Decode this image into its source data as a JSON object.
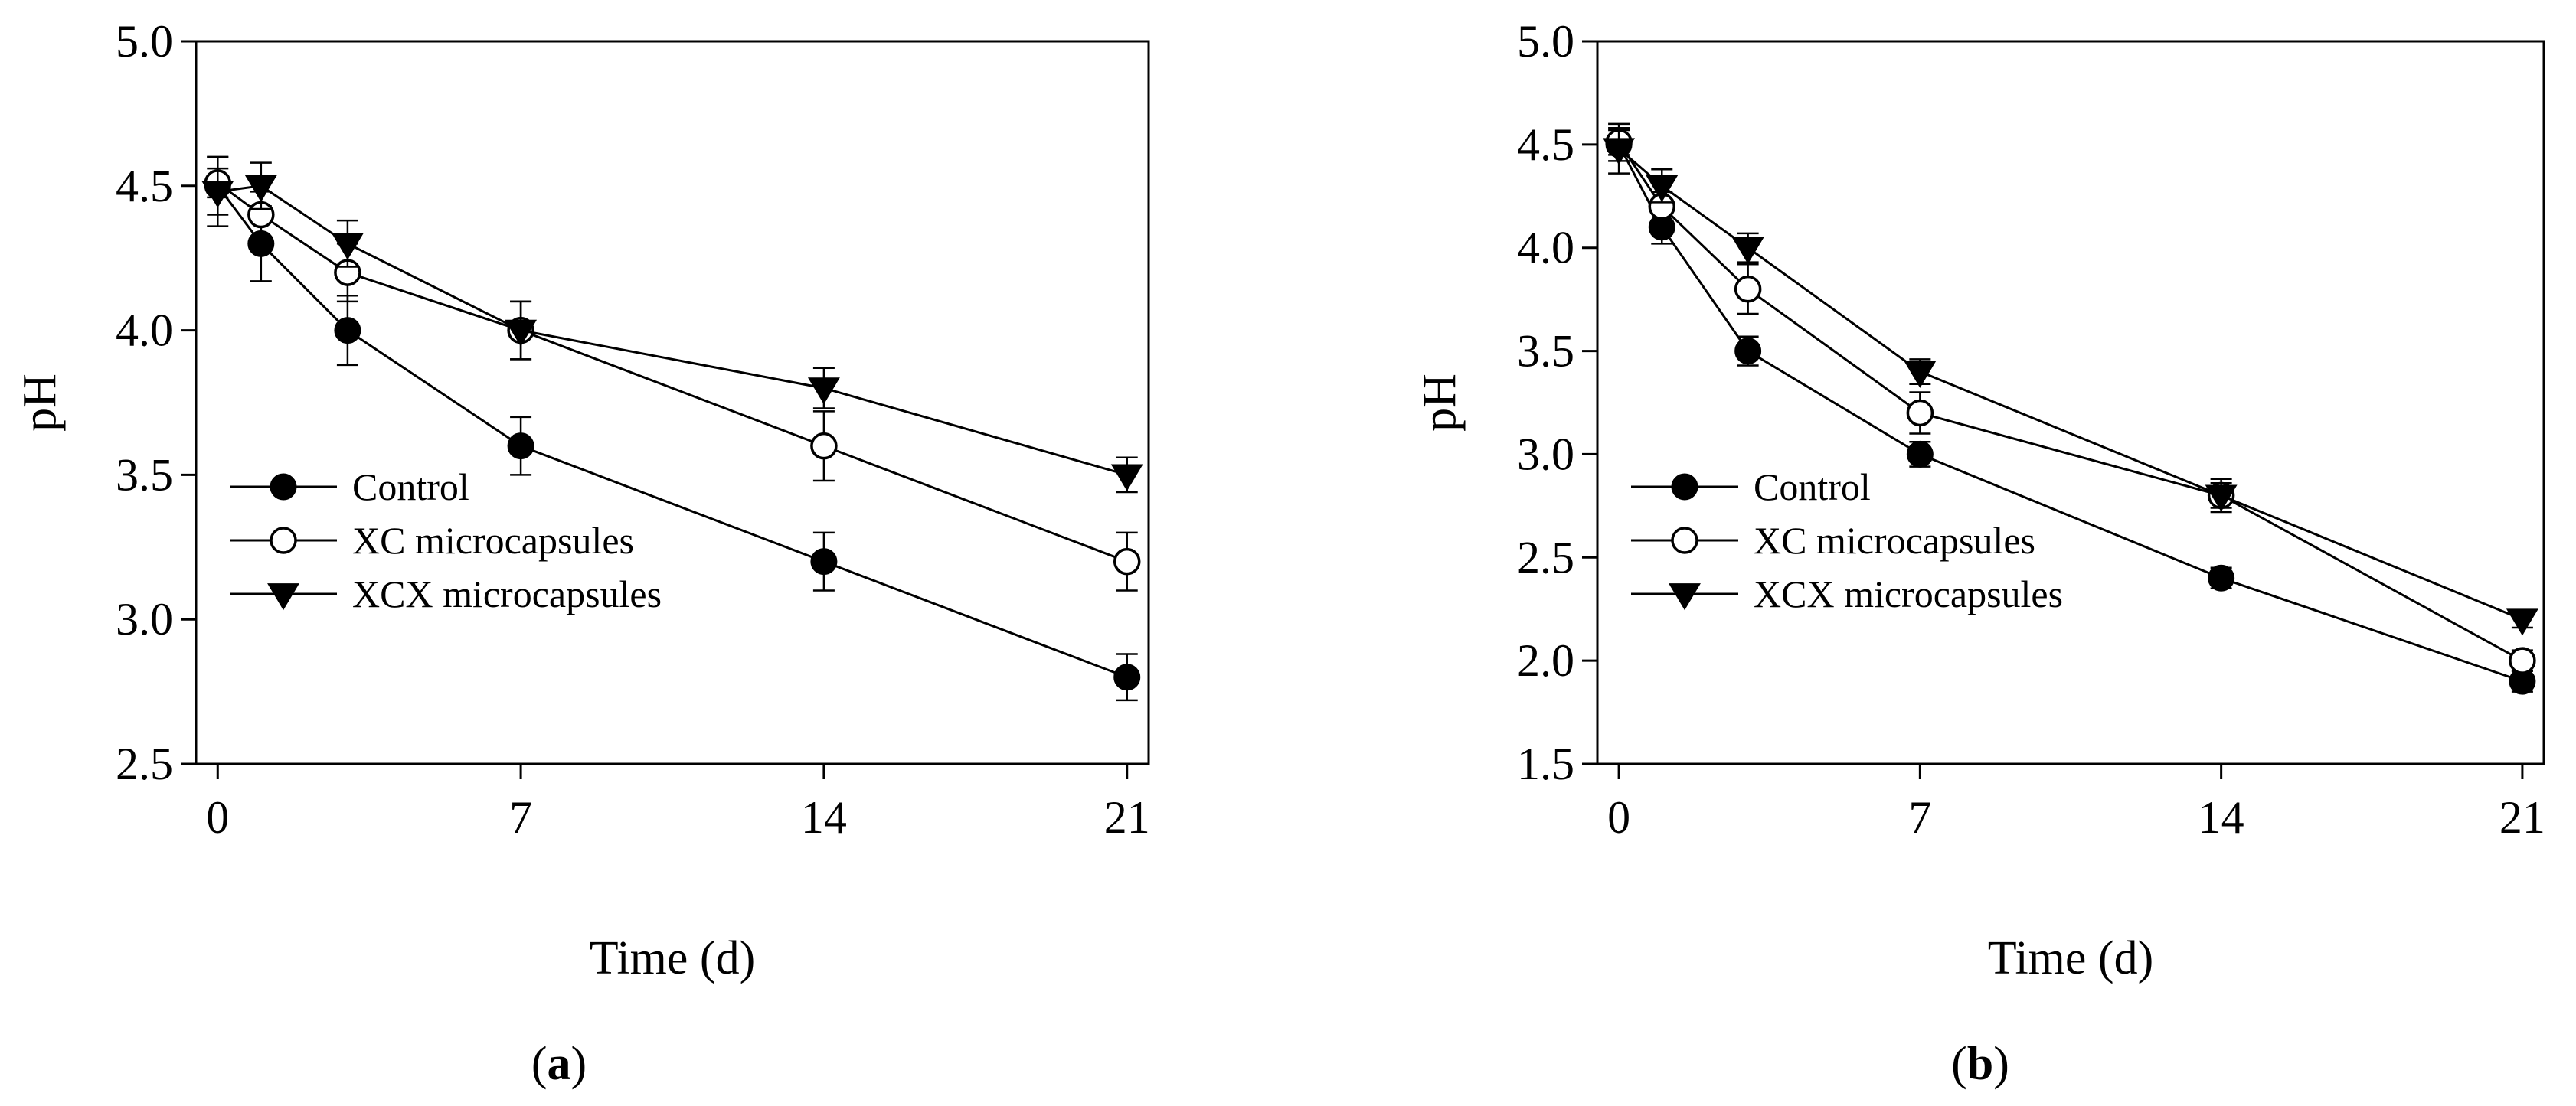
{
  "chart_data": [
    {
      "type": "line",
      "panel_label_open": "(",
      "panel_label_letter": "a",
      "panel_label_close": ")",
      "xlabel": "Time (d)",
      "ylabel": "pH",
      "xlim": [
        -0.5,
        21.5
      ],
      "ylim": [
        2.5,
        5.0
      ],
      "xticks": [
        0,
        7,
        14,
        21
      ],
      "yticks": [
        2.5,
        3.0,
        3.5,
        4.0,
        4.5,
        5.0
      ],
      "ytick_labels": [
        "2.5",
        "3.0",
        "3.5",
        "4.0",
        "4.5",
        "5.0"
      ],
      "legend_position": "lower-left",
      "series": [
        {
          "name": "Control",
          "marker": "filled-circle",
          "x": [
            0,
            1,
            3,
            7,
            14,
            21
          ],
          "y": [
            4.5,
            4.3,
            4.0,
            3.6,
            3.2,
            2.8
          ],
          "err": [
            0.1,
            0.13,
            0.12,
            0.1,
            0.1,
            0.08
          ]
        },
        {
          "name": "XC microcapsules",
          "marker": "open-circle",
          "x": [
            0,
            1,
            3,
            7,
            14,
            21
          ],
          "y": [
            4.51,
            4.4,
            4.2,
            4.0,
            3.6,
            3.2
          ],
          "err": [
            0.05,
            0.08,
            0.1,
            0.1,
            0.12,
            0.1
          ]
        },
        {
          "name": "XCX microcapsules",
          "marker": "filled-triangle-down",
          "x": [
            0,
            1,
            3,
            7,
            14,
            21
          ],
          "y": [
            4.48,
            4.5,
            4.3,
            4.0,
            3.8,
            3.5
          ],
          "err": [
            0.12,
            0.08,
            0.08,
            0.1,
            0.07,
            0.06
          ]
        }
      ]
    },
    {
      "type": "line",
      "panel_label_open": "(",
      "panel_label_letter": "b",
      "panel_label_close": ")",
      "xlabel": "Time (d)",
      "ylabel": "pH",
      "xlim": [
        -0.5,
        21.5
      ],
      "ylim": [
        1.5,
        5.0
      ],
      "xticks": [
        0,
        7,
        14,
        21
      ],
      "yticks": [
        1.5,
        2.0,
        2.5,
        3.0,
        3.5,
        4.0,
        4.5,
        5.0
      ],
      "ytick_labels": [
        "1.5",
        "2.0",
        "2.5",
        "3.0",
        "3.5",
        "4.0",
        "4.5",
        "5.0"
      ],
      "legend_position": "lower-left",
      "series": [
        {
          "name": "Control",
          "marker": "filled-circle",
          "x": [
            0,
            1,
            3,
            7,
            14,
            21
          ],
          "y": [
            4.5,
            4.1,
            3.5,
            3.0,
            2.4,
            1.9
          ],
          "err": [
            0.08,
            0.08,
            0.07,
            0.06,
            0.05,
            0.05
          ]
        },
        {
          "name": "XC microcapsules",
          "marker": "open-circle",
          "x": [
            0,
            1,
            3,
            7,
            14,
            21
          ],
          "y": [
            4.51,
            4.2,
            3.8,
            3.2,
            2.8,
            2.0
          ],
          "err": [
            0.06,
            0.07,
            0.12,
            0.1,
            0.08,
            0.05
          ]
        },
        {
          "name": "XCX microcapsules",
          "marker": "filled-triangle-down",
          "x": [
            0,
            1,
            3,
            7,
            14,
            21
          ],
          "y": [
            4.48,
            4.3,
            4.0,
            3.4,
            2.8,
            2.2
          ],
          "err": [
            0.12,
            0.08,
            0.07,
            0.06,
            0.06,
            0.04
          ]
        }
      ]
    }
  ]
}
